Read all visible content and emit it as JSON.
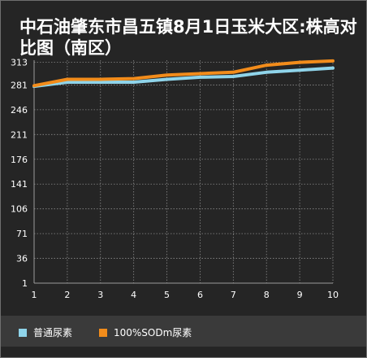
{
  "chart_data": {
    "type": "line",
    "title": "中石油肇东市昌五镇8月1日玉米大区:株高对比图（南区）",
    "x": [
      1,
      2,
      3,
      4,
      5,
      6,
      7,
      8,
      9,
      10
    ],
    "y_ticks": [
      1,
      36,
      71,
      106,
      141,
      176,
      211,
      246,
      281,
      313
    ],
    "ylim": [
      1,
      316
    ],
    "xlim": [
      1,
      10
    ],
    "grid": true,
    "legend": "bottom-left",
    "series": [
      {
        "name": "普通尿素",
        "color": "#8fd4ea",
        "values": [
          279,
          285,
          285,
          285,
          289,
          292,
          293,
          299,
          302,
          305
        ]
      },
      {
        "name": "100%SODm尿素",
        "color": "#f28c1b",
        "values": [
          280,
          289,
          289,
          290,
          295,
          297,
          299,
          309,
          313,
          315
        ]
      }
    ]
  }
}
